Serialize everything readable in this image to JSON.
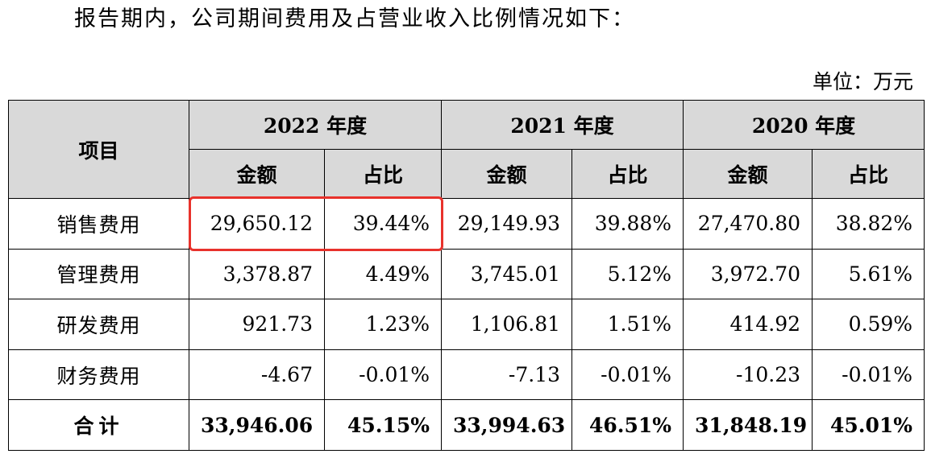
{
  "intro_text": "报告期内，公司期间费用及占营业收入比例情况如下：",
  "unit_label": "单位：万元",
  "table": {
    "item_header": "项目",
    "years": [
      "2022 年度",
      "2021 年度",
      "2020 年度"
    ],
    "sub_headers": [
      "金额",
      "占比",
      "金额",
      "占比",
      "金额",
      "占比"
    ],
    "rows": [
      {
        "item": "销售费用",
        "cells": [
          "29,650.12",
          "39.44%",
          "29,149.93",
          "39.88%",
          "27,470.80",
          "38.82%"
        ]
      },
      {
        "item": "管理费用",
        "cells": [
          "3,378.87",
          "4.49%",
          "3,745.01",
          "5.12%",
          "3,972.70",
          "5.61%"
        ]
      },
      {
        "item": "研发费用",
        "cells": [
          "921.73",
          "1.23%",
          "1,106.81",
          "1.51%",
          "414.92",
          "0.59%"
        ]
      },
      {
        "item": "财务费用",
        "cells": [
          "-4.67",
          "-0.01%",
          "-7.13",
          "-0.01%",
          "-10.23",
          "-0.01%"
        ]
      },
      {
        "item": "合计",
        "cells": [
          "33,946.06",
          "45.15%",
          "33,994.63",
          "46.51%",
          "31,848.19",
          "45.01%"
        ]
      }
    ]
  },
  "highlight_color": "#e8322c"
}
